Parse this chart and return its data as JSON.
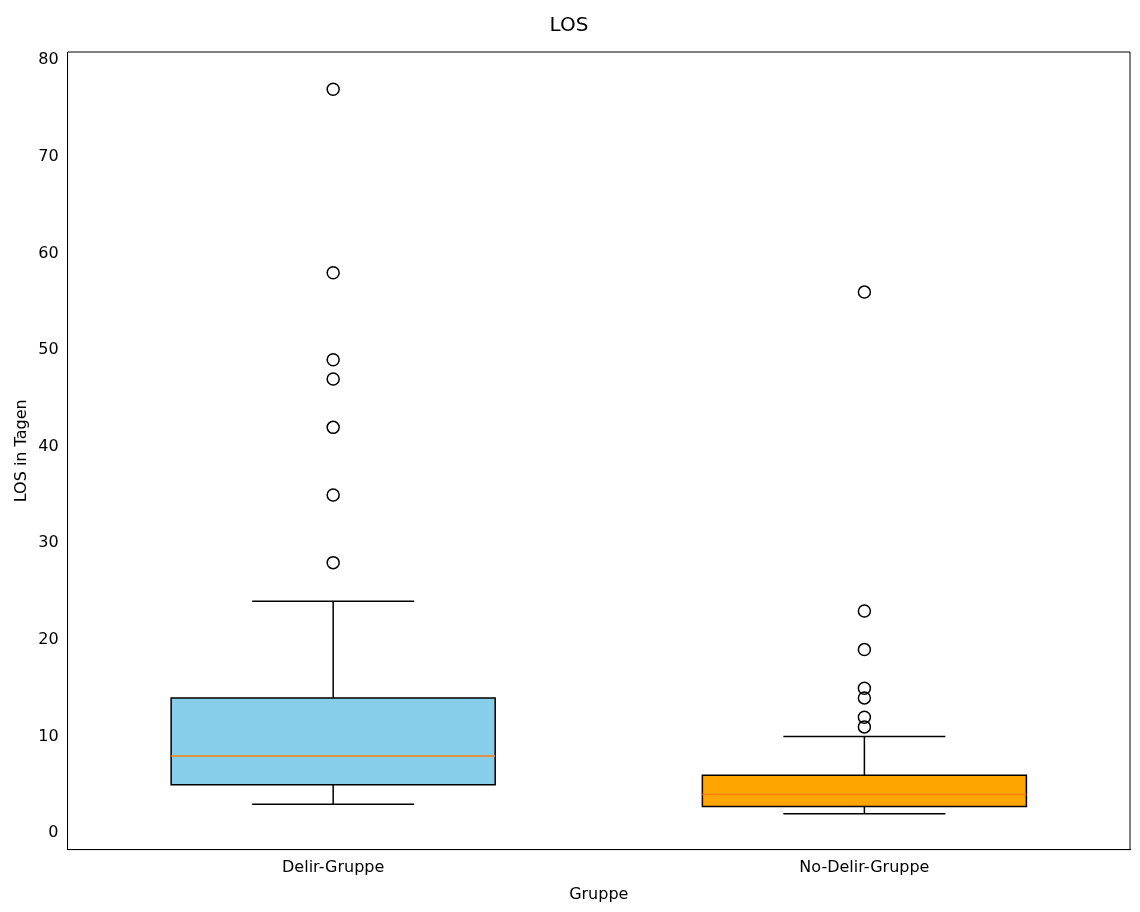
{
  "chart_data": {
    "type": "box",
    "title": "LOS",
    "xlabel": "Gruppe",
    "ylabel": "LOS in Tagen",
    "categories": [
      "Delir-Gruppe",
      "No-Delir-Gruppe"
    ],
    "colors": [
      "#87ceeb",
      "#ffa500"
    ],
    "boxes": [
      {
        "low": 3,
        "q1": 5,
        "median": 8,
        "q3": 14,
        "high": 24,
        "outliers": [
          77,
          58,
          49,
          47,
          42,
          35,
          28
        ]
      },
      {
        "low": 2,
        "q1": 2.75,
        "median": 4,
        "q3": 6,
        "high": 10,
        "outliers": [
          56,
          23,
          19,
          15,
          14,
          12,
          11
        ]
      }
    ],
    "ylim": [
      -1.7,
      80.85
    ],
    "yticks": [
      0,
      10,
      20,
      30,
      40,
      50,
      60,
      70,
      80
    ],
    "grid": false
  }
}
